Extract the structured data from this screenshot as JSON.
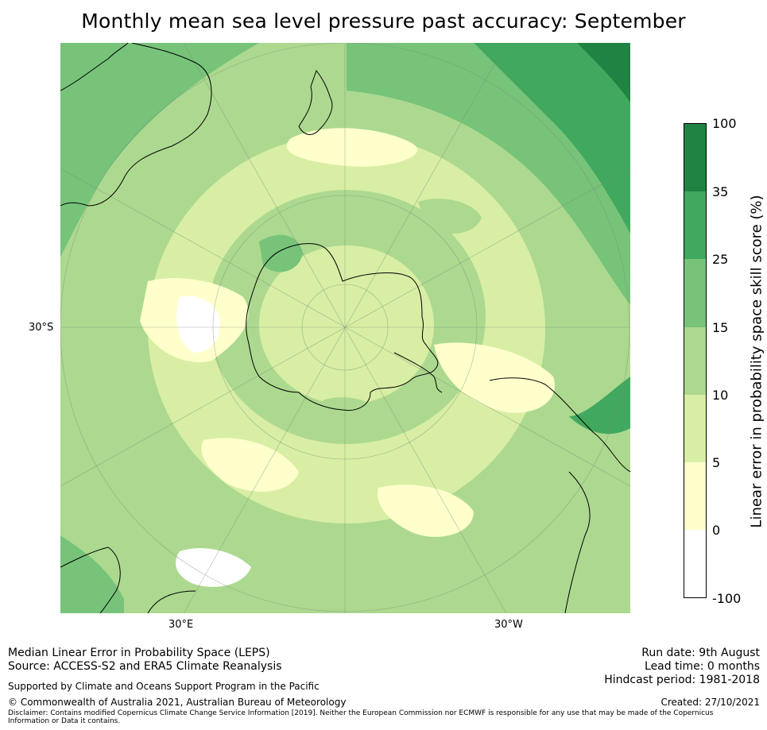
{
  "title": "Monthly mean sea level pressure past accuracy: September",
  "map": {
    "projection": "south polar stereographic",
    "lat_labels": [
      "30°S"
    ],
    "lon_labels": [
      "30°E",
      "30°W"
    ],
    "regions": [
      "Antarctica",
      "Australia",
      "New Zealand",
      "South America",
      "Southern Africa"
    ]
  },
  "colorbar": {
    "label": "Linear error in probability space skill score (%)",
    "ticks": [
      "100",
      "35",
      "25",
      "15",
      "10",
      "5",
      "0",
      "-100"
    ],
    "colors": [
      "#218343",
      "#41a85f",
      "#77c37a",
      "#acd98f",
      "#d8eea4",
      "#ffffcc",
      "#ffffff"
    ]
  },
  "footer": {
    "line1": "Median Linear Error in Probability Space (LEPS)",
    "line2": "Source: ACCESS-S2 and ERA5 Climate Reanalysis",
    "support": "Supported by Climate and Oceans Support Program in the Pacific",
    "copyright": "© Commonwealth of Australia 2021, Australian Bureau of Meteorology",
    "disclaimer": "Disclaimer: Contains modified Copernicus Climate Change Service Information [2019]. Neither the European Commission nor ECMWF is responsible for any use that may be made of the Copernicus Information or Data it contains.",
    "run_date": "Run date: 9th August",
    "lead_time": "Lead time: 0 months",
    "hindcast": "Hindcast period: 1981-2018",
    "created": "Created: 27/10/2021"
  }
}
